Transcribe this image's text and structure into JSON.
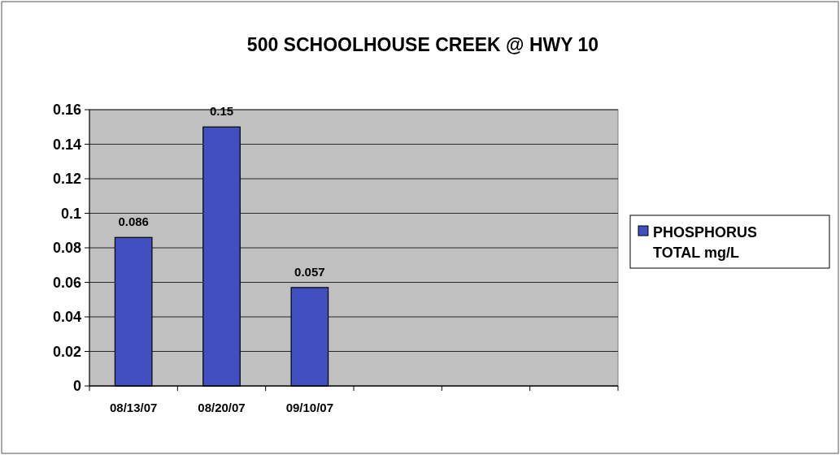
{
  "chart_data": {
    "type": "bar",
    "title": "500 SCHOOLHOUSE CREEK @ HWY 10",
    "categories": [
      "08/13/07",
      "08/20/07",
      "09/10/07",
      null,
      null,
      null
    ],
    "series": [
      {
        "name": "PHOSPHORUS TOTAL mg/L",
        "color": "#4050c0",
        "values": [
          0.086,
          0.15,
          0.057,
          null,
          null,
          null
        ]
      }
    ],
    "ylim": [
      0,
      0.16
    ],
    "yticks": [
      0,
      0.02,
      0.04,
      0.06,
      0.08,
      0.1,
      0.12,
      0.14,
      0.16
    ],
    "grid": "y",
    "legend": "right",
    "data_labels": true
  }
}
